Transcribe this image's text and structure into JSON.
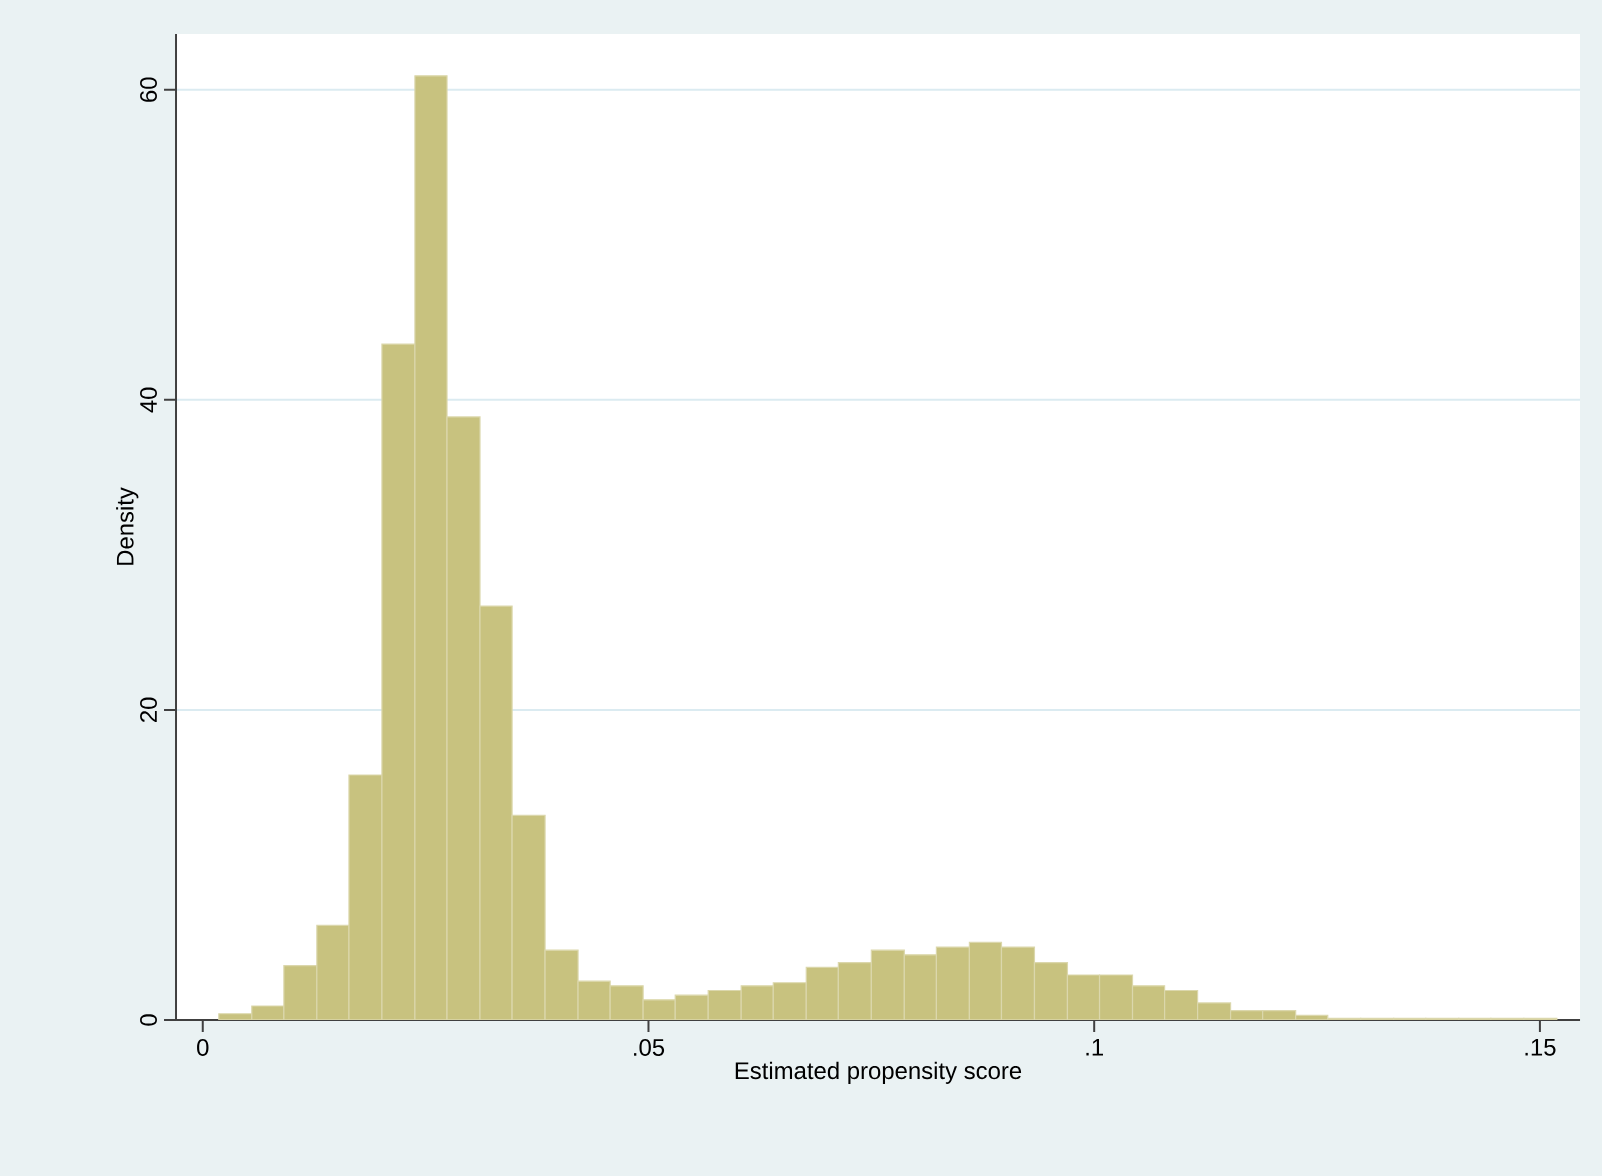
{
  "chart_data": {
    "type": "histogram",
    "xlabel": "Estimated propensity score",
    "ylabel": "Density",
    "color": "#c8c27f",
    "bins": [
      0.0018,
      0.0055,
      0.0091,
      0.0128,
      0.0164,
      0.0201,
      0.0238,
      0.0274,
      0.0311,
      0.0347,
      0.0384,
      0.0421,
      0.0457,
      0.0494,
      0.053,
      0.0567,
      0.0604,
      0.064,
      0.0677,
      0.0713,
      0.075,
      0.0787,
      0.0823,
      0.086,
      0.0896,
      0.0933,
      0.097,
      0.1006,
      0.1043,
      0.1079,
      0.1116,
      0.1153,
      0.1189,
      0.1226,
      0.1262,
      0.1299,
      0.1336,
      0.1372,
      0.1409,
      0.1445,
      0.1482,
      0.1519
    ],
    "values": [
      0.4,
      0.9,
      3.5,
      6.1,
      15.8,
      43.6,
      60.9,
      38.9,
      26.7,
      13.2,
      4.5,
      2.5,
      2.2,
      1.3,
      1.6,
      1.9,
      2.2,
      2.4,
      3.4,
      3.7,
      4.5,
      4.2,
      4.7,
      5.0,
      4.7,
      3.7,
      2.9,
      2.9,
      2.2,
      1.9,
      1.1,
      0.6,
      0.6,
      0.3,
      0.1,
      0.1,
      0.1,
      0.1,
      0.1,
      0.1,
      0.1
    ],
    "xlim": [
      -0.003,
      0.1545
    ],
    "ylim": [
      0,
      63.6
    ],
    "xticks": [
      0,
      {
        "value": 0.05,
        "label": ".05"
      },
      {
        "value": 0.1,
        "label": ".1"
      },
      {
        "value": 0.15,
        "label": ".15"
      }
    ],
    "yticks": [
      0,
      20,
      40,
      60
    ],
    "grid": "y"
  }
}
